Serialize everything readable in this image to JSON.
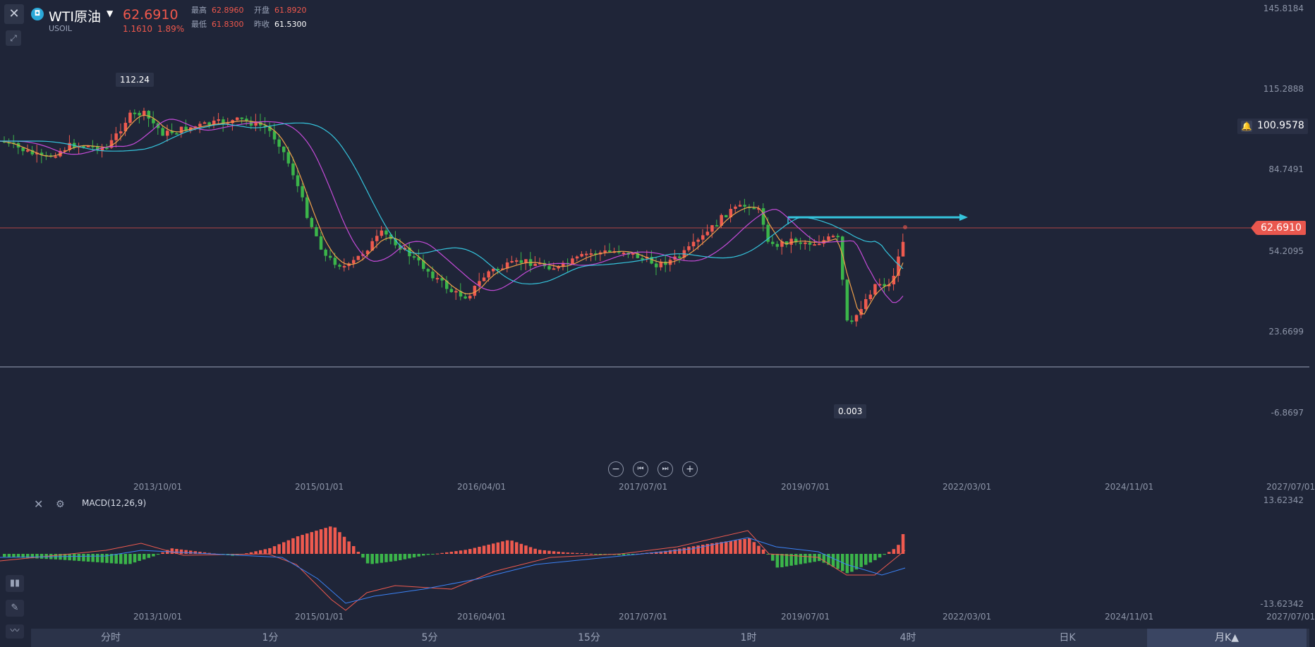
{
  "header": {
    "symbol_name": "WTI原油",
    "symbol_code": "USOIL",
    "last_price": "62.6910",
    "change_abs": "1.1610",
    "change_pct": "1.89%",
    "stats": {
      "high_label": "最高",
      "high_value": "62.8960",
      "open_label": "开盘",
      "open_value": "61.8920",
      "low_label": "最低",
      "low_value": "61.8300",
      "prev_close_label": "昨收",
      "prev_close_value": "61.5300"
    }
  },
  "price_axis": {
    "labels": [
      "145.8184",
      "115.2888",
      "84.7491",
      "54.2095",
      "23.6699",
      "-6.8697"
    ],
    "alert_value": "100.9578",
    "last_price_tag": "62.6910"
  },
  "annotations": {
    "high_marker": "112.24",
    "low_marker": "0.003"
  },
  "time_axis": {
    "labels": [
      "2013/10/01",
      "2015/01/01",
      "2016/04/01",
      "2017/07/01",
      "2019/07/01",
      "2022/03/01",
      "2024/11/01",
      "2027/07/01"
    ]
  },
  "zoom_controls": {
    "zoom_out": "−",
    "prev": "⏮",
    "next": "⏭",
    "zoom_in": "+"
  },
  "macd": {
    "title": "MACD(12,26,9)",
    "axis_top": "13.62342",
    "axis_bottom": "-13.62342"
  },
  "timeframes": {
    "items": [
      "分时",
      "1分",
      "5分",
      "15分",
      "1时",
      "4时",
      "日K",
      "月K▲"
    ],
    "active": "月K▲"
  },
  "colors": {
    "up": "#ef5a4f",
    "down": "#3bb54a",
    "ma_short": "#f0a14a",
    "ma_mid": "#c44bd8",
    "ma_long": "#35c4dc",
    "background": "#1f2538"
  },
  "icons": [
    "close-icon",
    "draw-tool-icon",
    "bell-icon",
    "settings-icon",
    "candle-icon",
    "pencil-icon",
    "indicator-icon"
  ],
  "chart_data": {
    "type": "candlestick",
    "x_range": [
      "2012",
      "2021"
    ],
    "y_range": [
      -6.8697,
      145.8184
    ],
    "period": "monthly",
    "highlighted": {
      "high": 112.24,
      "low": 0.003,
      "last": 62.691
    }
  }
}
